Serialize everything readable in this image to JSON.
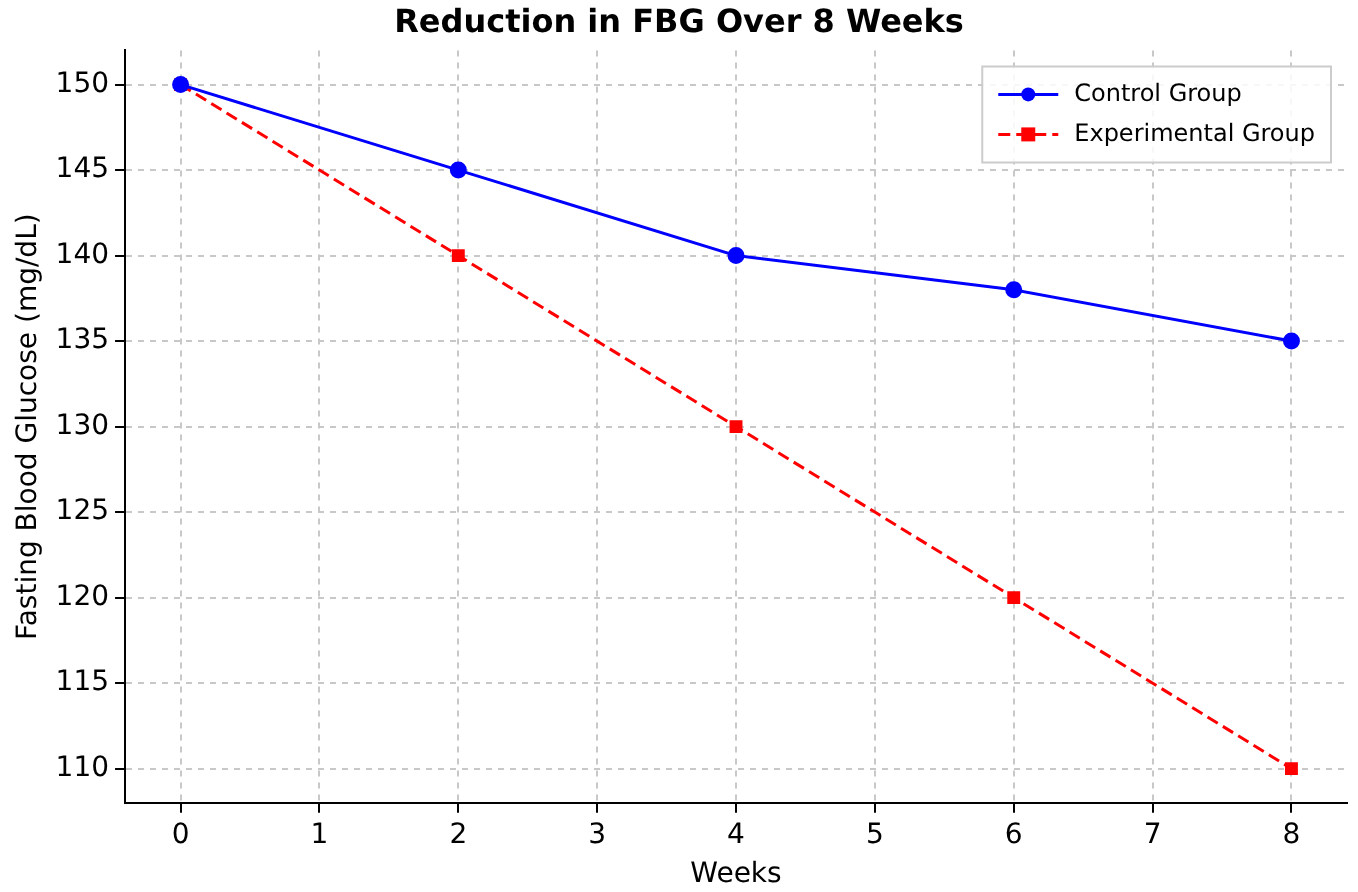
{
  "chart_data": {
    "type": "line",
    "title": "Reduction in FBG Over 8 Weeks",
    "xlabel": "Weeks",
    "ylabel": "Fasting Blood Glucose (mg/dL)",
    "x": [
      0,
      2,
      4,
      6,
      8
    ],
    "series": [
      {
        "name": "Control Group",
        "color": "#0000ff",
        "values": [
          150,
          145,
          140,
          138,
          135
        ],
        "marker": "circle",
        "line_style": "solid"
      },
      {
        "name": "Experimental Group",
        "color": "#ff0000",
        "values": [
          150,
          140,
          130,
          120,
          110
        ],
        "marker": "square",
        "line_style": "dashed"
      }
    ],
    "xlim": [
      -0.4,
      8.4
    ],
    "xticks": [
      0,
      1,
      2,
      3,
      4,
      5,
      6,
      7,
      8
    ],
    "ylim": [
      108,
      152
    ],
    "yticks": [
      110,
      115,
      120,
      125,
      130,
      135,
      140,
      145,
      150
    ],
    "grid": true,
    "legend": "top right"
  }
}
